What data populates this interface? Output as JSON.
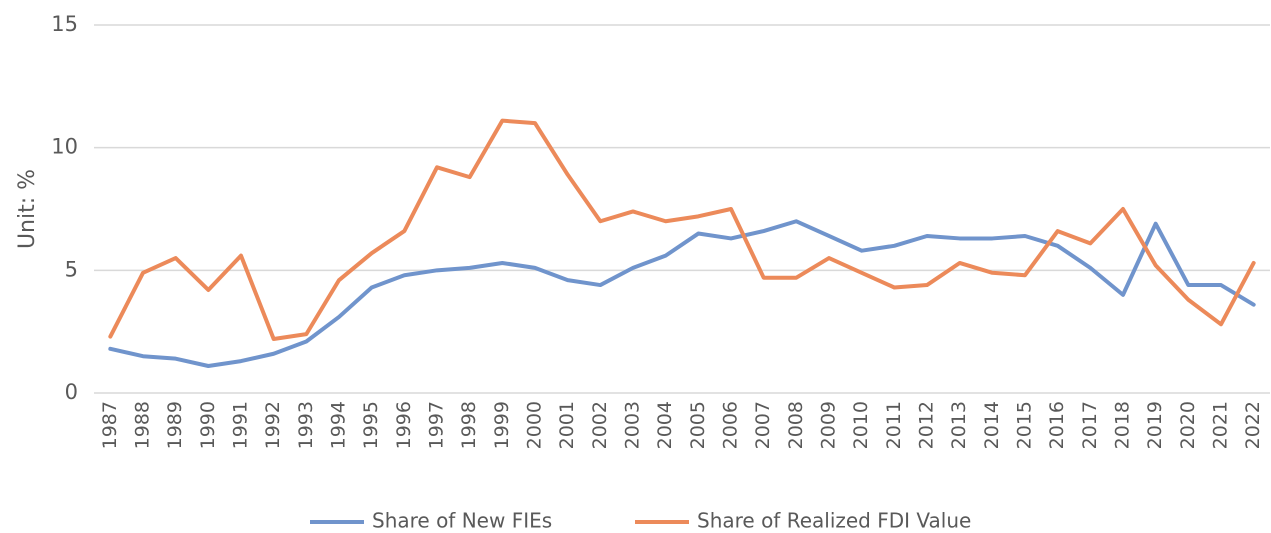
{
  "chart_data": {
    "type": "line",
    "ylabel": "Unit: %",
    "categories": [
      "1987",
      "1988",
      "1989",
      "1990",
      "1991",
      "1992",
      "1993",
      "1994",
      "1995",
      "1996",
      "1997",
      "1998",
      "1999",
      "2000",
      "2001",
      "2002",
      "2003",
      "2004",
      "2005",
      "2006",
      "2007",
      "2008",
      "2009",
      "2010",
      "2011",
      "2012",
      "2013",
      "2014",
      "2015",
      "2016",
      "2017",
      "2018",
      "2019",
      "2020",
      "2021",
      "2022"
    ],
    "series": [
      {
        "name": "Share of New FIEs",
        "color": "#7094cc",
        "values": [
          1.8,
          1.5,
          1.4,
          1.1,
          1.3,
          1.6,
          2.1,
          3.1,
          4.3,
          4.8,
          5.0,
          5.1,
          5.3,
          5.1,
          4.6,
          4.4,
          5.1,
          5.6,
          6.5,
          6.3,
          6.6,
          7.0,
          6.4,
          5.8,
          6.0,
          6.4,
          6.3,
          6.3,
          6.4,
          6.0,
          5.1,
          4.0,
          6.9,
          4.4,
          4.4,
          3.6
        ]
      },
      {
        "name": "Share of Realized FDI Value",
        "color": "#ec8a5a",
        "values": [
          2.3,
          4.9,
          5.5,
          4.2,
          5.6,
          2.2,
          2.4,
          4.6,
          5.7,
          6.6,
          9.2,
          8.8,
          11.1,
          11.0,
          8.9,
          7.0,
          7.4,
          7.0,
          7.2,
          7.5,
          4.7,
          4.7,
          5.5,
          4.9,
          4.3,
          4.4,
          5.3,
          4.9,
          4.8,
          6.6,
          6.1,
          7.5,
          5.2,
          3.8,
          2.8,
          5.3
        ]
      }
    ],
    "ylim": [
      0,
      15
    ],
    "yticks": [
      0,
      5,
      10,
      15
    ],
    "grid": true,
    "legend": "bottom"
  }
}
